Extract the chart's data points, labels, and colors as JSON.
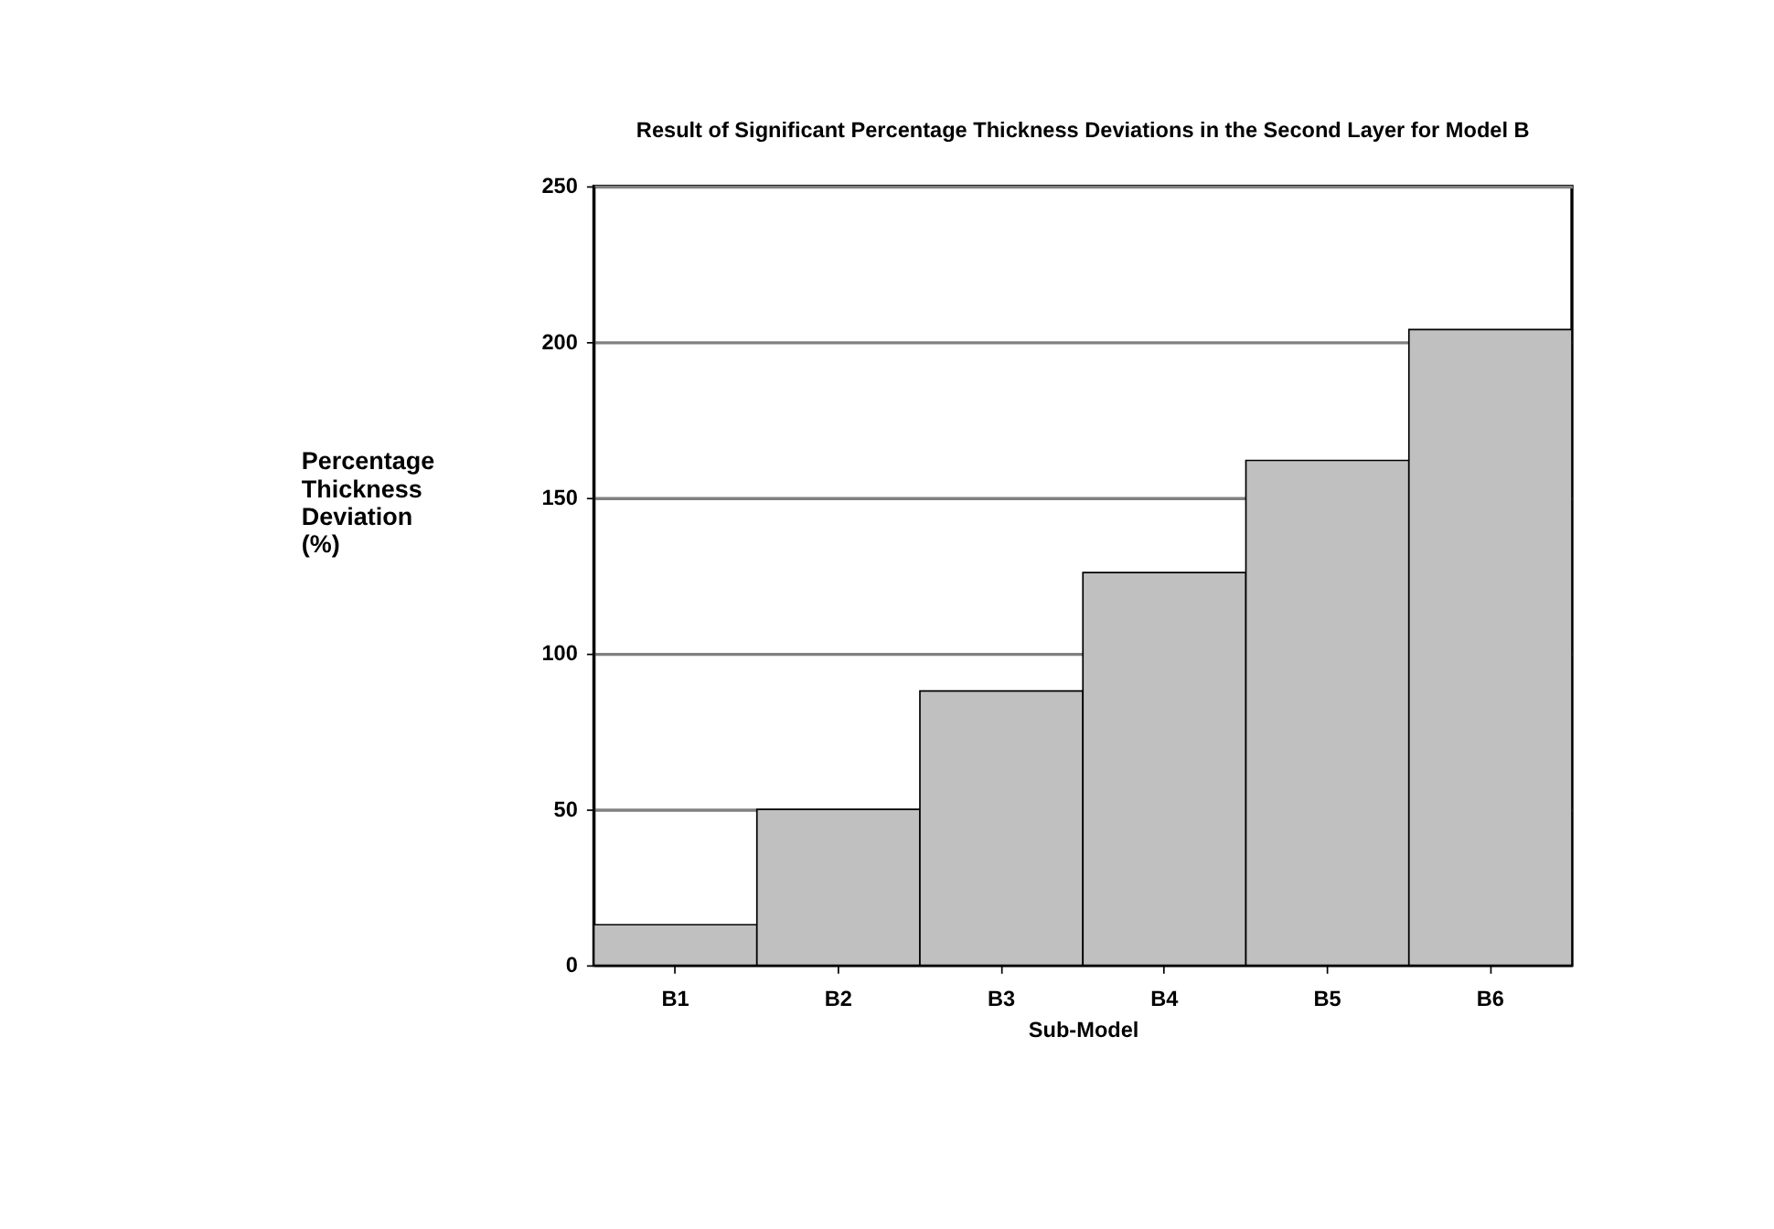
{
  "chart_data": {
    "type": "bar",
    "title": "Result of Significant Percentage Thickness  Deviations in  the Second Layer for Model B",
    "xlabel": "Sub-Model",
    "ylabel": "Percentage Thickness Deviation (%)",
    "categories": [
      "B1",
      "B2",
      "B3",
      "B4",
      "B5",
      "B6"
    ],
    "values": [
      13,
      50,
      88,
      126,
      162,
      204
    ],
    "color": "#c0c0c0",
    "ylim": [
      0,
      250
    ],
    "yticks": [
      0,
      50,
      100,
      150,
      200,
      250
    ],
    "grid": "y"
  }
}
